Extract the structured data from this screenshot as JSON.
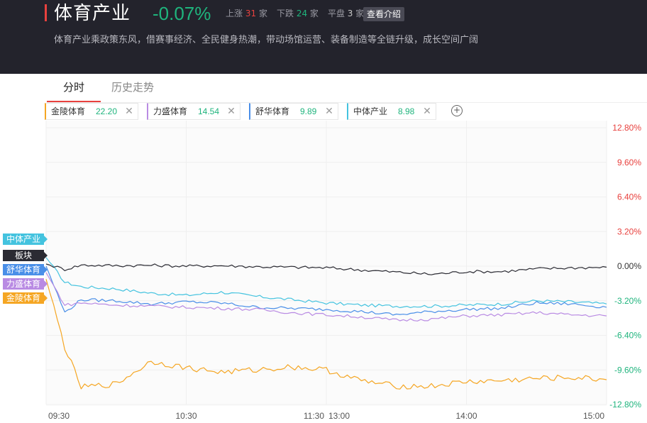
{
  "header": {
    "title": "体育产业",
    "change": "-0.07%",
    "stats": {
      "up_label": "上涨",
      "up_count": "31",
      "up_unit": "家",
      "down_label": "下跌",
      "down_count": "24",
      "down_unit": "家",
      "flat_label": "平盘",
      "flat_count": "3",
      "flat_unit": "家"
    },
    "intro_button": "查看介绍",
    "description": "体育产业乘政策东风，借赛事经济、全民健身热潮，带动场馆运营、装备制造等全链升级，成长空间广阔",
    "accent_color": "#e8413e"
  },
  "tabs": [
    {
      "label": "分时",
      "active": true
    },
    {
      "label": "历史走势",
      "active": false
    }
  ],
  "chips": [
    {
      "name": "金陵体育",
      "value": "22.20",
      "color": "#f5a623"
    },
    {
      "name": "力盛体育",
      "value": "14.54",
      "color": "#b98be3"
    },
    {
      "name": "舒华体育",
      "value": "9.89",
      "color": "#4a8fe8"
    },
    {
      "name": "中体产业",
      "value": "8.98",
      "color": "#44c3df"
    }
  ],
  "add_symbol": "+",
  "close_symbol": "✕",
  "legend_tags": [
    {
      "label": "中体产业",
      "color": "#44c3df"
    },
    {
      "label": "板块",
      "color": "#2b2b33"
    },
    {
      "label": "舒华体育",
      "color": "#4a8fe8"
    },
    {
      "label": "力盛体育",
      "color": "#b98be3"
    },
    {
      "label": "金陵体育",
      "color": "#f5a623"
    }
  ],
  "chart_data": {
    "type": "line",
    "x_ticks": [
      "09:30",
      "10:30",
      "11:30",
      "13:00",
      "14:00",
      "15:00"
    ],
    "y_ticks": [
      "12.80%",
      "9.60%",
      "6.40%",
      "3.20%",
      "0.00%",
      "-3.20%",
      "-6.40%",
      "-9.60%",
      "-12.80%"
    ],
    "ylim": [
      -12.8,
      12.8
    ],
    "grid": true,
    "colors": {
      "up": "#e8413e",
      "zero": "#333333",
      "down": "#1fb47d"
    },
    "x": [
      0,
      8,
      15,
      30,
      45,
      60,
      75,
      90,
      105,
      120,
      135,
      150,
      165,
      180,
      195,
      210,
      225,
      240
    ],
    "series": [
      {
        "name": "中体产业",
        "color": "#44c3df",
        "values": [
          0.8,
          -1.5,
          -1.9,
          -2.1,
          -2.5,
          -2.7,
          -2.4,
          -2.8,
          -3.1,
          -3.4,
          -3.6,
          -3.7,
          -3.7,
          -3.6,
          -3.5,
          -3.2,
          -3.3,
          -3.5
        ]
      },
      {
        "name": "板块",
        "color": "#2b2b33",
        "values": [
          0.2,
          -0.3,
          0.1,
          0.05,
          0.08,
          0.0,
          0.05,
          -0.05,
          -0.1,
          -0.15,
          -0.35,
          -0.55,
          -0.75,
          -0.5,
          -0.5,
          -0.25,
          -0.15,
          -0.1
        ]
      },
      {
        "name": "舒华体育",
        "color": "#4a8fe8",
        "values": [
          0.0,
          -4.3,
          -3.1,
          -3.2,
          -3.5,
          -3.3,
          -3.4,
          -3.8,
          -3.9,
          -4.0,
          -4.2,
          -4.5,
          -4.2,
          -4.0,
          -3.9,
          -3.4,
          -3.5,
          -3.8
        ]
      },
      {
        "name": "力盛体育",
        "color": "#b98be3",
        "values": [
          -0.6,
          -3.6,
          -3.4,
          -3.6,
          -3.7,
          -3.8,
          -3.9,
          -4.0,
          -4.3,
          -4.5,
          -4.7,
          -5.0,
          -4.9,
          -4.6,
          -4.5,
          -4.3,
          -4.5,
          -4.6
        ]
      },
      {
        "name": "金陵体育",
        "color": "#f5a623",
        "values": [
          -1.2,
          -7.5,
          -11.2,
          -10.9,
          -8.8,
          -9.4,
          -9.8,
          -9.6,
          -9.3,
          -9.6,
          -10.6,
          -11.1,
          -11.1,
          -10.7,
          -10.6,
          -10.4,
          -10.3,
          -10.5
        ]
      }
    ]
  }
}
